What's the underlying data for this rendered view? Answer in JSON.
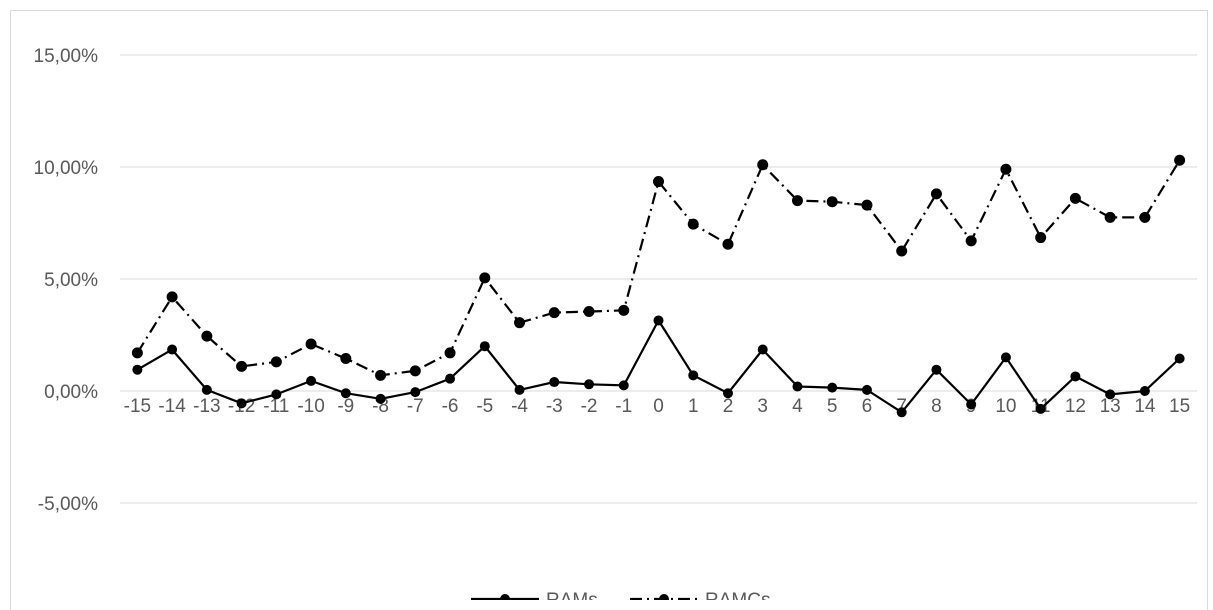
{
  "chart_data": {
    "type": "line",
    "title": "",
    "xlabel": "",
    "ylabel": "",
    "categories": [
      "-15",
      "-14",
      "-13",
      "-12",
      "-11",
      "-10",
      "-9",
      "-8",
      "-7",
      "-6",
      "-5",
      "-4",
      "-3",
      "-2",
      "-1",
      "0",
      "1",
      "2",
      "3",
      "4",
      "5",
      "6",
      "7",
      "8",
      "9",
      "10",
      "11",
      "12",
      "13",
      "14",
      "15"
    ],
    "ylim": [
      -0.05,
      0.15
    ],
    "yticks": [
      -0.05,
      0,
      0.05,
      0.1,
      0.15
    ],
    "ytick_labels": [
      "-5,00%",
      "0,00%",
      "5,00%",
      "10,00%",
      "15,00%"
    ],
    "grid": true,
    "legend_position": "bottom",
    "series": [
      {
        "name": "RAMs",
        "line_style": "solid",
        "color": "#000000",
        "values": [
          0.0095,
          0.0185,
          0.0005,
          -0.0055,
          -0.0015,
          0.0045,
          -0.001,
          -0.0035,
          -0.0005,
          0.0055,
          0.02,
          0.0005,
          0.004,
          0.003,
          0.0025,
          0.0315,
          0.007,
          -0.001,
          0.0185,
          0.002,
          0.0015,
          0.0005,
          -0.0095,
          0.0095,
          -0.006,
          0.015,
          -0.008,
          0.0065,
          -0.0015,
          0.0,
          0.0145
        ]
      },
      {
        "name": "RAMCs",
        "line_style": "dash-dot",
        "color": "#000000",
        "values": [
          0.017,
          0.042,
          0.0245,
          0.011,
          0.013,
          0.021,
          0.0145,
          0.007,
          0.009,
          0.017,
          0.0505,
          0.0305,
          0.035,
          0.0355,
          0.036,
          0.0935,
          0.0745,
          0.0655,
          0.101,
          0.085,
          0.0845,
          0.083,
          0.0625,
          0.088,
          0.067,
          0.099,
          0.0685,
          0.086,
          0.0775,
          0.0775,
          0.103
        ]
      }
    ]
  }
}
